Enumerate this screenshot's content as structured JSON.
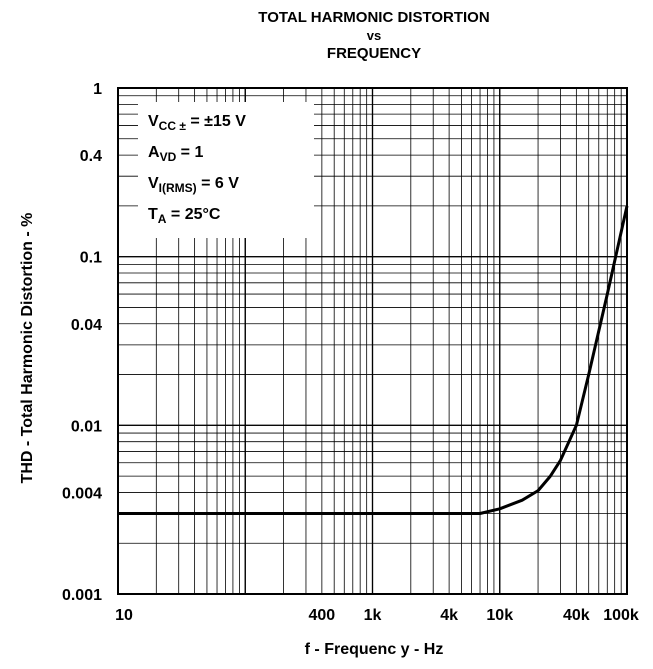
{
  "chart_data": {
    "type": "line",
    "title_lines": [
      "TOTAL HARMONIC DISTORTION",
      "vs",
      "FREQUENCY"
    ],
    "xlabel": "f - Frequenc y - Hz",
    "ylabel": "THD - Total Harmonic Distortion - %",
    "x_scale": "log",
    "y_scale": "log",
    "xlim": [
      10,
      100000
    ],
    "ylim": [
      0.001,
      1
    ],
    "x_ticks": [
      {
        "value": 10,
        "label": "10"
      },
      {
        "value": 400,
        "label": "400"
      },
      {
        "value": 1000,
        "label": "1k"
      },
      {
        "value": 4000,
        "label": "4k"
      },
      {
        "value": 10000,
        "label": "10k"
      },
      {
        "value": 40000,
        "label": "40k"
      },
      {
        "value": 100000,
        "label": "100k"
      }
    ],
    "y_ticks": [
      {
        "value": 1,
        "label": "1"
      },
      {
        "value": 0.4,
        "label": "0.4"
      },
      {
        "value": 0.1,
        "label": "0.1"
      },
      {
        "value": 0.04,
        "label": "0.04"
      },
      {
        "value": 0.01,
        "label": "0.01"
      },
      {
        "value": 0.004,
        "label": "0.004"
      },
      {
        "value": 0.001,
        "label": "0.001"
      }
    ],
    "grid": true,
    "legend_box": {
      "placement": "top-left",
      "lines": [
        {
          "main": "V",
          "sub": "CC ±",
          "rest": " = ±15 V"
        },
        {
          "main": "A",
          "sub": "VD",
          "rest": " = 1"
        },
        {
          "main": "V",
          "sub": "I(RMS)",
          "rest": " = 6 V"
        },
        {
          "main": "T",
          "sub": "A",
          "rest": " = 25°C"
        }
      ]
    },
    "series": [
      {
        "x": [
          10,
          100,
          1000,
          3000,
          6000,
          7000,
          10000,
          15000,
          20000,
          25000,
          30000,
          40000,
          50000,
          70000,
          100000
        ],
        "y": [
          0.003,
          0.003,
          0.003,
          0.003,
          0.003,
          0.003,
          0.0032,
          0.0036,
          0.0041,
          0.005,
          0.0062,
          0.01,
          0.02,
          0.06,
          0.2
        ]
      }
    ]
  }
}
